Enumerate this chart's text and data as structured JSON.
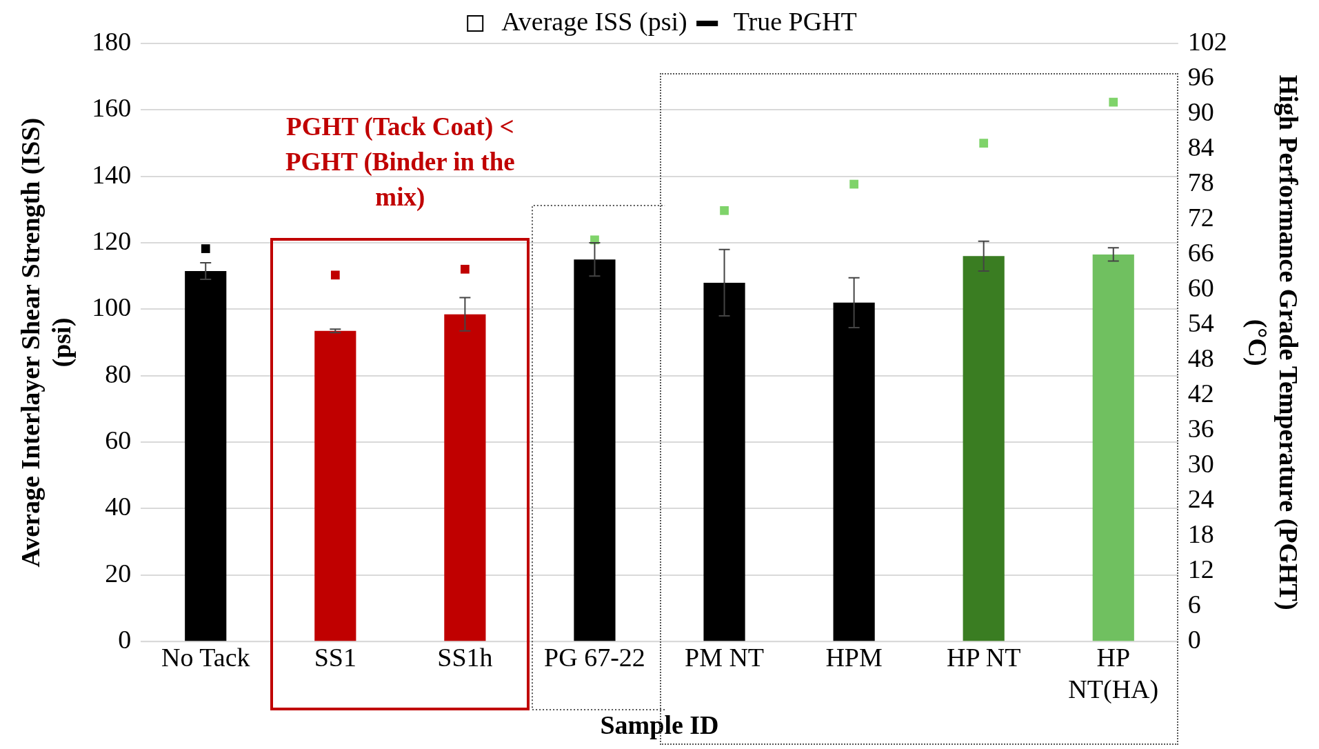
{
  "chart_data": {
    "type": "bar",
    "xlabel": "Sample ID",
    "ylabel": "Average Interlayer Shear Strength (ISS) (psi)",
    "y2label": "High Performance Grade Temperature (PGHT) (°C)",
    "categories": [
      "No Tack",
      "SS1",
      "SS1h",
      "PG 67-22",
      "PM NT",
      "HPM",
      "HP NT",
      "HP NT(HA)"
    ],
    "series": [
      {
        "name": "Average ISS (psi)",
        "type": "bar",
        "color": "#000000",
        "colors": [
          "#000000",
          "#c00000",
          "#c00000",
          "#000000",
          "#000000",
          "#000000",
          "#3a7d22",
          "#70c060"
        ],
        "values": [
          111.5,
          93.5,
          98.5,
          115,
          108,
          102,
          116,
          116.5
        ],
        "errors": [
          2.5,
          0.5,
          5,
          5,
          10,
          7.5,
          4.5,
          2
        ]
      },
      {
        "name": "True PGHT",
        "type": "scatter",
        "axis": "y2",
        "color": "#000000",
        "colors": [
          "#000000",
          "#c00000",
          "#c00000",
          "#7fd36a",
          "#7fd36a",
          "#7fd36a",
          "#7fd36a",
          "#7fd36a"
        ],
        "values": [
          67,
          62.5,
          63.5,
          68.5,
          73.5,
          78,
          85,
          92
        ]
      }
    ],
    "ylim": [
      0,
      180
    ],
    "yticks": [
      0,
      20,
      40,
      60,
      80,
      100,
      120,
      140,
      160,
      180
    ],
    "y2lim": [
      0,
      102
    ],
    "y2ticks": [
      0,
      6,
      12,
      18,
      24,
      30,
      36,
      42,
      48,
      54,
      60,
      66,
      72,
      78,
      84,
      90,
      96,
      102
    ],
    "grid": "y",
    "legend": "top",
    "annotations": [
      "PGHT (Tack Coat) < PGHT (Binder in the mix)"
    ]
  }
}
